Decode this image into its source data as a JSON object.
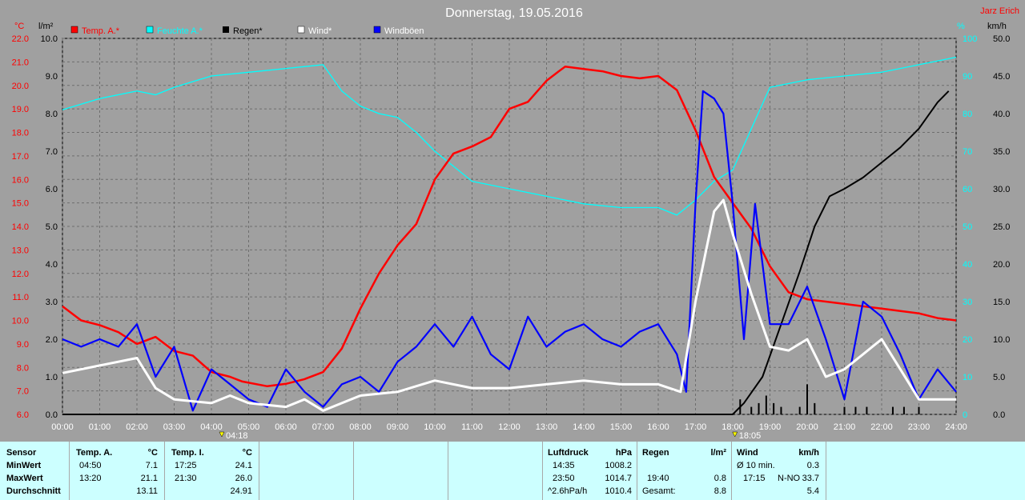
{
  "header": {
    "title": "Donnerstag, 19.05.2016",
    "author": "Jarz Erich"
  },
  "units": {
    "temp": "°C",
    "rain": "l/m²",
    "humidity": "%",
    "wind": "km/h"
  },
  "legend": [
    {
      "label": "Temp. A.*",
      "color": "#ff0000"
    },
    {
      "label": "Feuchte A.*",
      "color": "#00ffff"
    },
    {
      "label": "Regen*",
      "color": "#000000"
    },
    {
      "label": "Wind*",
      "color": "#ffffff"
    },
    {
      "label": "Windböen",
      "color": "#0000ff"
    }
  ],
  "markers": [
    {
      "time": 4.3,
      "label": "04:18"
    },
    {
      "time": 18.08,
      "label": "18:05"
    }
  ],
  "chart_data": {
    "type": "line",
    "title": "Donnerstag, 19.05.2016",
    "xlim": [
      0,
      24
    ],
    "x_ticks": [
      "00:00",
      "01:00",
      "02:00",
      "03:00",
      "04:00",
      "05:00",
      "06:00",
      "07:00",
      "08:00",
      "09:00",
      "10:00",
      "11:00",
      "12:00",
      "13:00",
      "14:00",
      "15:00",
      "16:00",
      "17:00",
      "18:00",
      "19:00",
      "20:00",
      "21:00",
      "22:00",
      "23:00",
      "24:00"
    ],
    "axes": {
      "temp": {
        "range": [
          6,
          22
        ],
        "ticks": [
          "6.0",
          "7.0",
          "8.0",
          "9.0",
          "10.0",
          "11.0",
          "12.0",
          "13.0",
          "14.0",
          "15.0",
          "16.0",
          "17.0",
          "18.0",
          "19.0",
          "20.0",
          "21.0",
          "22.0"
        ]
      },
      "rain": {
        "range": [
          0,
          10
        ],
        "ticks": [
          "0.0",
          "1.0",
          "2.0",
          "3.0",
          "4.0",
          "5.0",
          "6.0",
          "7.0",
          "8.0",
          "9.0",
          "10.0"
        ]
      },
      "humidity": {
        "range": [
          0,
          100
        ],
        "ticks": [
          "0",
          "10",
          "20",
          "30",
          "40",
          "50",
          "60",
          "70",
          "80",
          "90",
          "100"
        ]
      },
      "wind": {
        "range": [
          0,
          50
        ],
        "ticks": [
          "0.0",
          "5.0",
          "10.0",
          "15.0",
          "20.0",
          "25.0",
          "30.0",
          "35.0",
          "40.0",
          "45.0",
          "50.0"
        ]
      }
    },
    "grid": true,
    "series": [
      {
        "name": "Temp. A.*",
        "axis": "temp",
        "color": "#ff0000",
        "points": [
          [
            0,
            10.6
          ],
          [
            0.5,
            10.0
          ],
          [
            1,
            9.8
          ],
          [
            1.5,
            9.5
          ],
          [
            2,
            9.0
          ],
          [
            2.5,
            9.3
          ],
          [
            3,
            8.7
          ],
          [
            3.5,
            8.5
          ],
          [
            4,
            7.8
          ],
          [
            4.5,
            7.6
          ],
          [
            4.83,
            7.4
          ],
          [
            5.5,
            7.2
          ],
          [
            6,
            7.3
          ],
          [
            6.5,
            7.5
          ],
          [
            7,
            7.8
          ],
          [
            7.5,
            8.8
          ],
          [
            8,
            10.5
          ],
          [
            8.5,
            12.0
          ],
          [
            9,
            13.2
          ],
          [
            9.5,
            14.1
          ],
          [
            10,
            16.0
          ],
          [
            10.5,
            17.1
          ],
          [
            11,
            17.4
          ],
          [
            11.5,
            17.8
          ],
          [
            12,
            19.0
          ],
          [
            12.5,
            19.3
          ],
          [
            13,
            20.2
          ],
          [
            13.33,
            20.6
          ],
          [
            13.5,
            20.8
          ],
          [
            14,
            20.7
          ],
          [
            14.5,
            20.6
          ],
          [
            15,
            20.4
          ],
          [
            15.5,
            20.3
          ],
          [
            16,
            20.4
          ],
          [
            16.5,
            19.8
          ],
          [
            17,
            18.1
          ],
          [
            17.5,
            16.1
          ],
          [
            18,
            15.0
          ],
          [
            18.5,
            13.9
          ],
          [
            19,
            12.3
          ],
          [
            19.5,
            11.2
          ],
          [
            20,
            10.9
          ],
          [
            20.5,
            10.8
          ],
          [
            21,
            10.7
          ],
          [
            21.5,
            10.6
          ],
          [
            22,
            10.5
          ],
          [
            22.5,
            10.4
          ],
          [
            23,
            10.3
          ],
          [
            23.5,
            10.1
          ],
          [
            24,
            10.0
          ]
        ]
      },
      {
        "name": "Feuchte A.*",
        "axis": "humidity",
        "color": "#00ffff",
        "points": [
          [
            0,
            81
          ],
          [
            1,
            84
          ],
          [
            2,
            86
          ],
          [
            2.5,
            85
          ],
          [
            3,
            87
          ],
          [
            4,
            90
          ],
          [
            5,
            91
          ],
          [
            6,
            92
          ],
          [
            7,
            93
          ],
          [
            7.5,
            86
          ],
          [
            8,
            82
          ],
          [
            8.5,
            80
          ],
          [
            9,
            79
          ],
          [
            9.5,
            75
          ],
          [
            10,
            70
          ],
          [
            11,
            62
          ],
          [
            12,
            60
          ],
          [
            13,
            58
          ],
          [
            14,
            56
          ],
          [
            15,
            55
          ],
          [
            16,
            55
          ],
          [
            16.5,
            53
          ],
          [
            17,
            57
          ],
          [
            17.5,
            62
          ],
          [
            18,
            65
          ],
          [
            18.5,
            76
          ],
          [
            19,
            87
          ],
          [
            20,
            89
          ],
          [
            21,
            90
          ],
          [
            22,
            91
          ],
          [
            23,
            93
          ],
          [
            24,
            95
          ]
        ]
      },
      {
        "name": "Regen*",
        "axis": "rain",
        "color": "#000000",
        "points": [
          [
            0,
            0
          ],
          [
            18,
            0
          ],
          [
            18.3,
            0.3
          ],
          [
            18.8,
            1.0
          ],
          [
            19.3,
            2.4
          ],
          [
            19.8,
            3.8
          ],
          [
            20.2,
            5.0
          ],
          [
            20.6,
            5.8
          ],
          [
            21,
            6.0
          ],
          [
            21.5,
            6.3
          ],
          [
            22,
            6.7
          ],
          [
            22.5,
            7.1
          ],
          [
            23,
            7.6
          ],
          [
            23.5,
            8.3
          ],
          [
            23.8,
            8.6
          ]
        ]
      },
      {
        "name": "Wind*",
        "axis": "wind",
        "color": "#ffffff",
        "points": [
          [
            0,
            5.5
          ],
          [
            1,
            6.5
          ],
          [
            2,
            7.5
          ],
          [
            2.5,
            3.5
          ],
          [
            3,
            2
          ],
          [
            4,
            1.5
          ],
          [
            4.5,
            2.5
          ],
          [
            5,
            1.5
          ],
          [
            6,
            1.0
          ],
          [
            6.5,
            2
          ],
          [
            7,
            0.5
          ],
          [
            8,
            2.5
          ],
          [
            9,
            3.0
          ],
          [
            10,
            4.5
          ],
          [
            11,
            3.5
          ],
          [
            12,
            3.5
          ],
          [
            13,
            4.0
          ],
          [
            14,
            4.5
          ],
          [
            15,
            4.0
          ],
          [
            16,
            4.0
          ],
          [
            16.6,
            3.0
          ],
          [
            17,
            15
          ],
          [
            17.5,
            27
          ],
          [
            17.75,
            28.5
          ],
          [
            18,
            24
          ],
          [
            18.5,
            16
          ],
          [
            19,
            9
          ],
          [
            19.5,
            8.5
          ],
          [
            20,
            10
          ],
          [
            20.5,
            5
          ],
          [
            21,
            6
          ],
          [
            21.5,
            8
          ],
          [
            22,
            10
          ],
          [
            22.5,
            6
          ],
          [
            23,
            2
          ],
          [
            23.5,
            2
          ],
          [
            24,
            2
          ]
        ]
      },
      {
        "name": "Windböen",
        "axis": "wind",
        "color": "#0000ff",
        "points": [
          [
            0,
            10
          ],
          [
            0.5,
            9
          ],
          [
            1,
            10
          ],
          [
            1.5,
            9
          ],
          [
            2,
            12
          ],
          [
            2.5,
            5
          ],
          [
            3,
            9
          ],
          [
            3.5,
            0.5
          ],
          [
            4,
            6
          ],
          [
            4.5,
            4
          ],
          [
            5,
            2
          ],
          [
            5.5,
            1
          ],
          [
            6,
            6
          ],
          [
            6.5,
            3
          ],
          [
            7,
            1
          ],
          [
            7.5,
            4
          ],
          [
            8,
            5
          ],
          [
            8.5,
            3
          ],
          [
            9,
            7
          ],
          [
            9.5,
            9
          ],
          [
            10,
            12
          ],
          [
            10.5,
            9
          ],
          [
            11,
            13
          ],
          [
            11.5,
            8
          ],
          [
            12,
            6
          ],
          [
            12.5,
            13
          ],
          [
            13,
            9
          ],
          [
            13.5,
            11
          ],
          [
            14,
            12
          ],
          [
            14.5,
            10
          ],
          [
            15,
            9
          ],
          [
            15.5,
            11
          ],
          [
            16,
            12
          ],
          [
            16.5,
            8
          ],
          [
            16.75,
            3
          ],
          [
            17,
            28
          ],
          [
            17.2,
            43
          ],
          [
            17.5,
            42
          ],
          [
            17.75,
            40
          ],
          [
            18,
            28
          ],
          [
            18.3,
            10
          ],
          [
            18.6,
            28
          ],
          [
            19,
            12
          ],
          [
            19.5,
            12
          ],
          [
            20,
            17
          ],
          [
            20.5,
            10
          ],
          [
            21,
            2
          ],
          [
            21.5,
            15
          ],
          [
            22,
            13
          ],
          [
            22.5,
            8
          ],
          [
            23,
            2
          ],
          [
            23.5,
            6
          ],
          [
            24,
            3
          ]
        ]
      }
    ],
    "rain_bars": [
      [
        18.2,
        0.4
      ],
      [
        18.5,
        0.2
      ],
      [
        18.7,
        0.3
      ],
      [
        18.9,
        0.5
      ],
      [
        19.1,
        0.3
      ],
      [
        19.3,
        0.2
      ],
      [
        19.8,
        0.2
      ],
      [
        20.0,
        0.8
      ],
      [
        20.2,
        0.3
      ],
      [
        21.0,
        0.2
      ],
      [
        21.3,
        0.2
      ],
      [
        21.6,
        0.2
      ],
      [
        22.3,
        0.2
      ],
      [
        22.6,
        0.2
      ],
      [
        23.0,
        0.2
      ]
    ]
  },
  "stats": {
    "sensor": {
      "header": "Sensor",
      "rows": [
        "MinWert",
        "MaxWert",
        "Durchschnitt"
      ]
    },
    "temp_a": {
      "header": "Temp. A.",
      "unit": "°C",
      "rows": [
        [
          "04:50",
          "7.1"
        ],
        [
          "13:20",
          "21.1"
        ],
        [
          "",
          "13.11"
        ]
      ]
    },
    "temp_i": {
      "header": "Temp. I.",
      "unit": "°C",
      "rows": [
        [
          "17:25",
          "24.1"
        ],
        [
          "21:30",
          "26.0"
        ],
        [
          "",
          "24.91"
        ]
      ]
    },
    "pressure": {
      "header": "Luftdruck",
      "unit": "hPa",
      "rows": [
        [
          "14:35",
          "1008.2"
        ],
        [
          "23:50",
          "1014.7"
        ],
        [
          "^2.6hPa/h",
          "1010.4"
        ]
      ]
    },
    "rain": {
      "header": "Regen",
      "unit": "l/m²",
      "rows": [
        [
          "",
          ""
        ],
        [
          "19:40",
          "0.8"
        ],
        [
          "Gesamt:",
          "8.8"
        ]
      ]
    },
    "wind": {
      "header": "Wind",
      "unit": "km/h",
      "rows": [
        [
          "Ø 10 min.",
          "",
          "0.3"
        ],
        [
          "17:15",
          "N-NO",
          "33.7"
        ],
        [
          "",
          "",
          "5.4"
        ]
      ]
    }
  }
}
